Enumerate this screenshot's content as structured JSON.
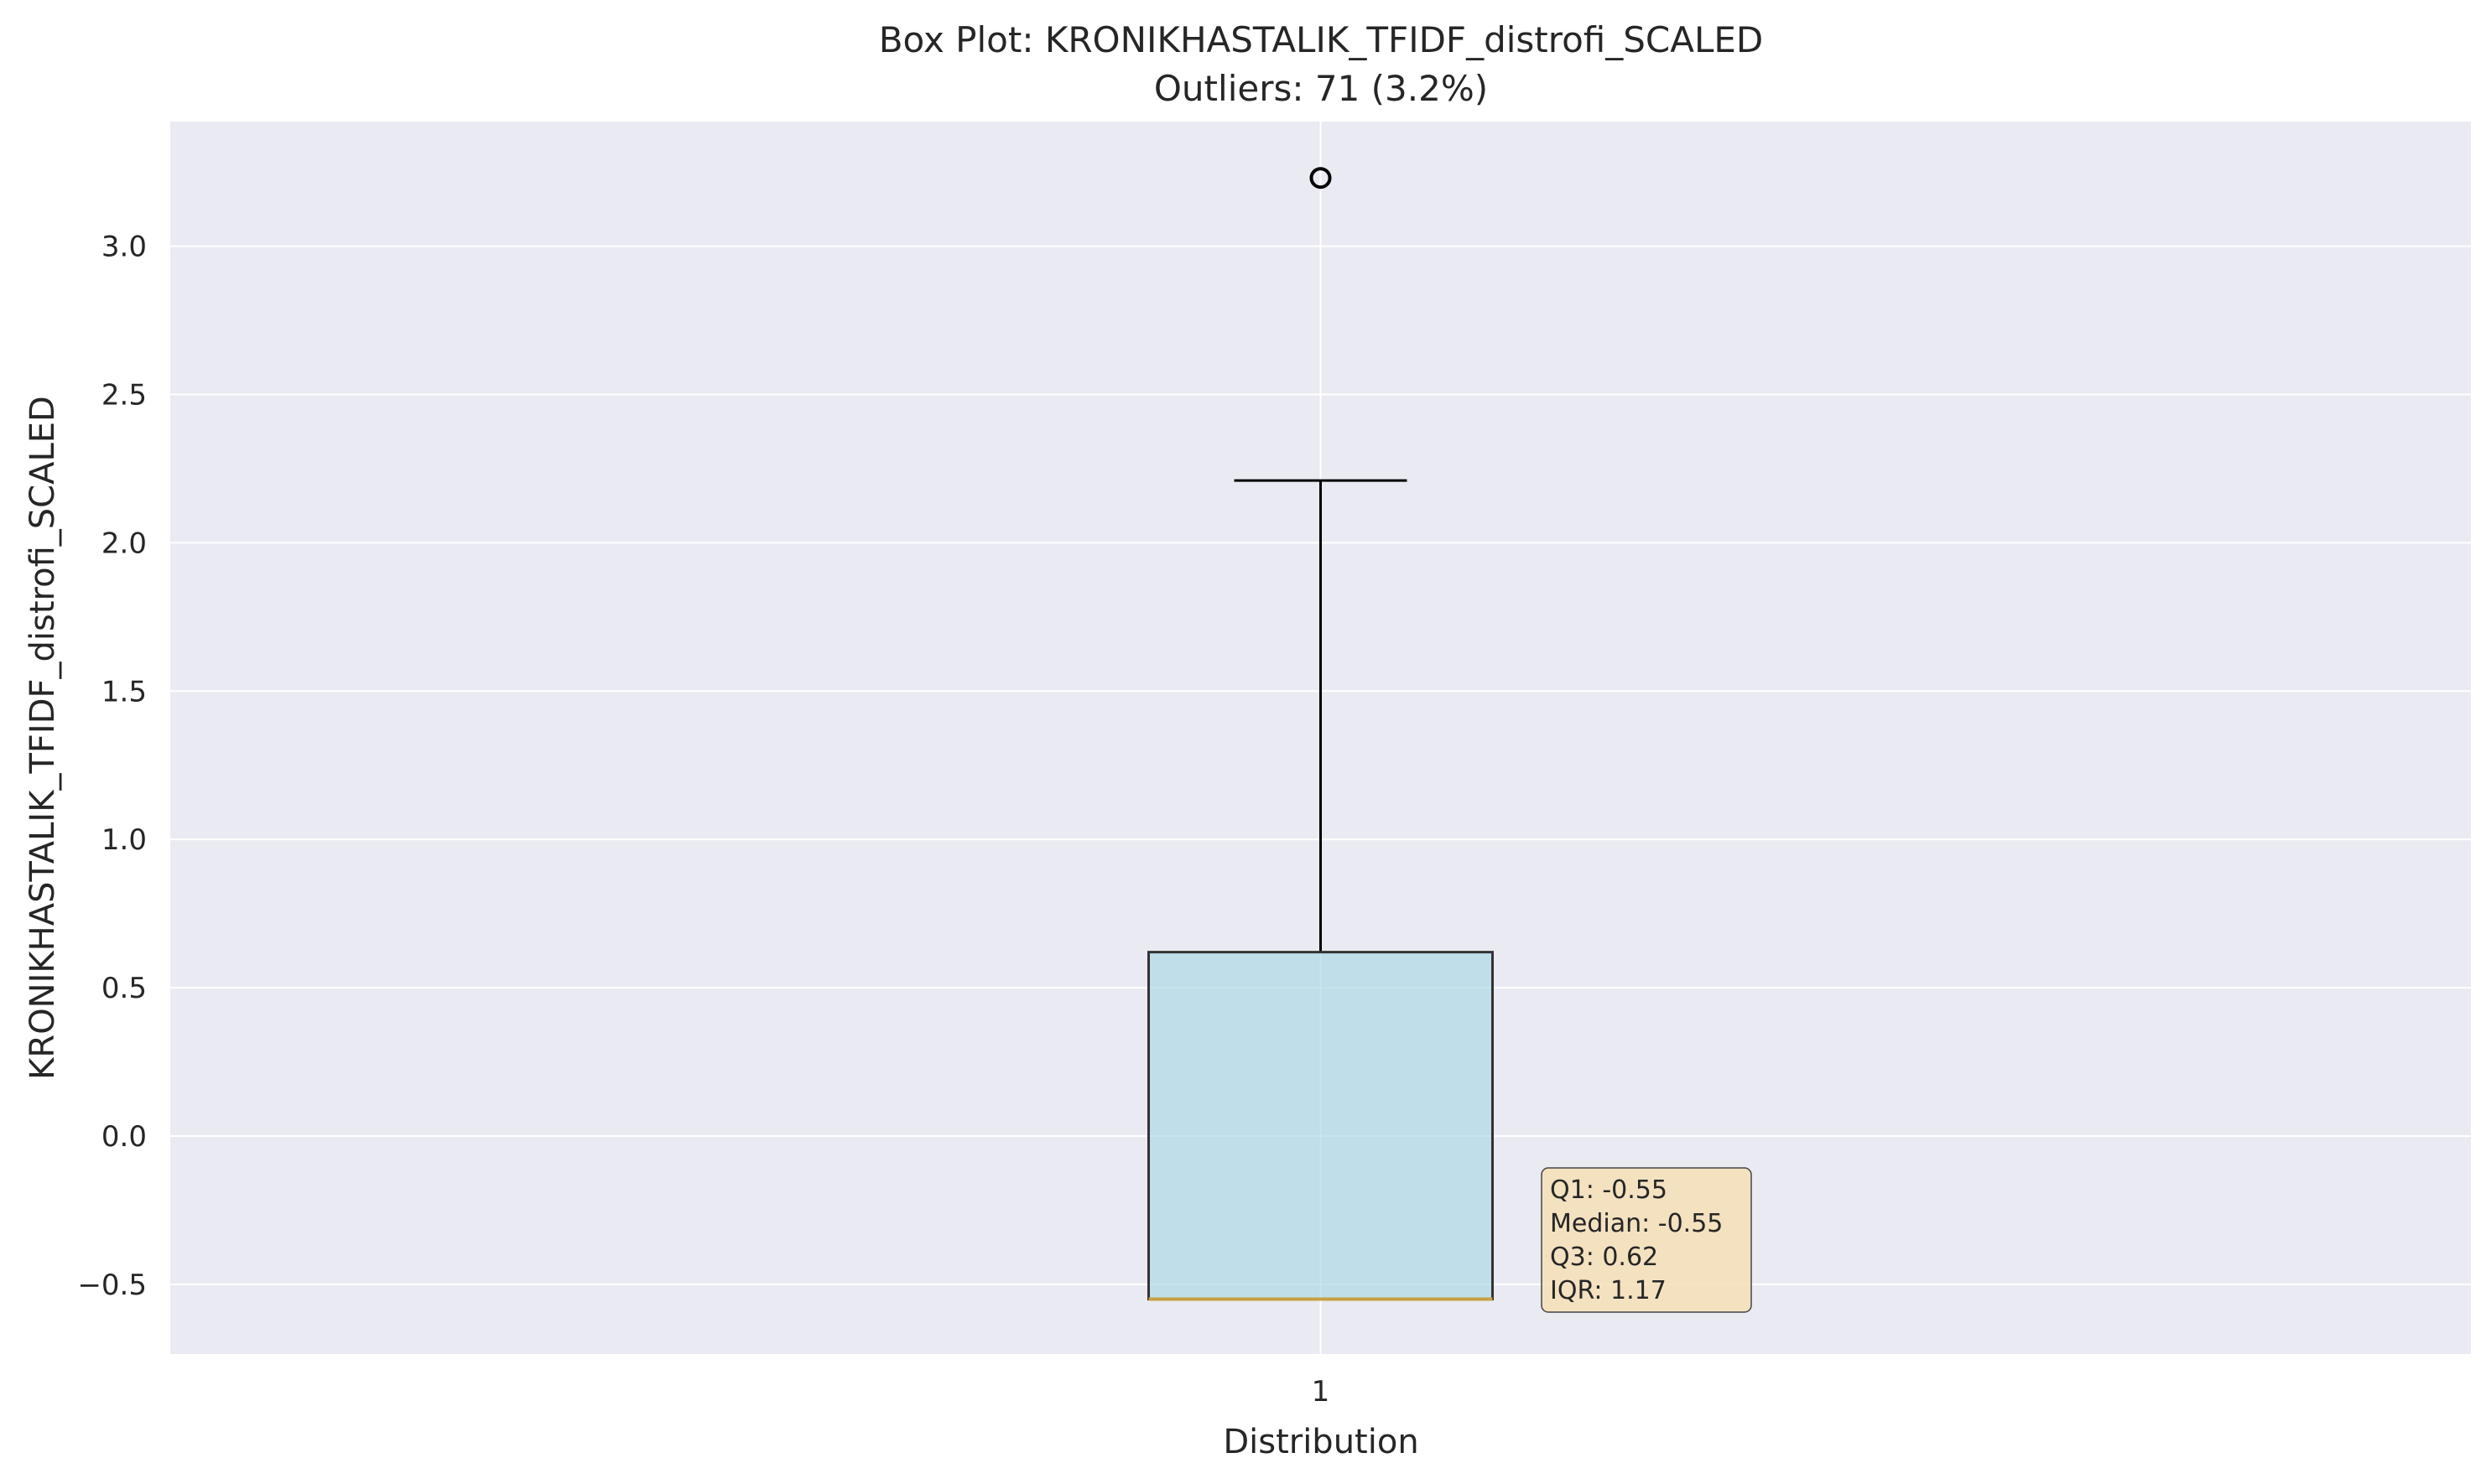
{
  "chart_data": {
    "type": "box",
    "title": "Box Plot: KRONIKHASTALIK_TFIDF_distrofi_SCALED",
    "subtitle": "Outliers: 71 (3.2%)",
    "xlabel": "Distribution",
    "ylabel": "KRONIKHASTALIK_TFIDF_distrofi_SCALED",
    "categories": [
      "1"
    ],
    "ylim": [
      -0.735,
      3.42
    ],
    "yticks": [
      -0.5,
      0.0,
      0.5,
      1.0,
      1.5,
      2.0,
      2.5,
      3.0
    ],
    "ytick_labels": [
      "−0.5",
      "0.0",
      "0.5",
      "1.0",
      "1.5",
      "2.0",
      "2.5",
      "3.0"
    ],
    "grid": true,
    "box": {
      "q1": -0.55,
      "median": -0.55,
      "q3": 0.62,
      "whisker_low": -0.55,
      "whisker_high": 2.21,
      "outliers": [
        3.23
      ]
    },
    "stats_lines": [
      "Q1: -0.55",
      "Median: -0.55",
      "Q3: 0.62",
      "IQR: 1.17"
    ],
    "colors": {
      "plot_bg": "#eaeaf2",
      "grid": "#ffffff",
      "box_fill": "#add8e6",
      "box_edge": "#333333",
      "median": "#c8a040",
      "whisker": "#000000",
      "stats_bg": "#f5deb3"
    }
  }
}
